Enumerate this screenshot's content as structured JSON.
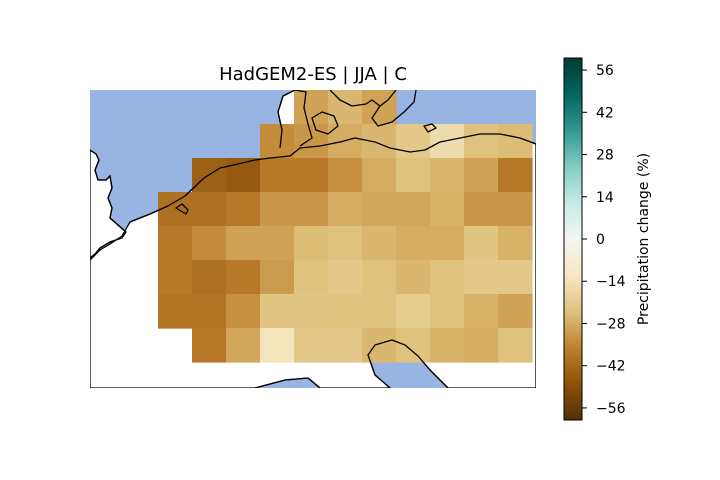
{
  "title": "HadGEM2-ES | JJA | C",
  "colorbar": {
    "label": "Precipitation change (%)",
    "ticks": [
      56,
      42,
      28,
      14,
      0,
      -14,
      -28,
      -42,
      -56
    ],
    "tick_labels": [
      "56",
      "42",
      "28",
      "14",
      "0",
      "−14",
      "−28",
      "−42",
      "−56"
    ],
    "vmin": -60,
    "vmax": 60,
    "colormap": "BrBG",
    "stops": [
      "#543005",
      "#8c510a",
      "#bf812d",
      "#dfc27d",
      "#f6e8c3",
      "#f5f5f5",
      "#c7eae5",
      "#80cdc1",
      "#35978f",
      "#01665e",
      "#003c30"
    ]
  },
  "colors": {
    "sea": "#98b4e2",
    "coast": "#000000"
  },
  "chart_data": {
    "type": "heatmap",
    "title": "HadGEM2-ES | JJA | C",
    "value_label": "Precipitation change (%)",
    "vmin": -60,
    "vmax": 60,
    "columns": 13,
    "rows": 9,
    "grid_values": [
      [
        null,
        null,
        null,
        null,
        null,
        null,
        -30,
        -26,
        -30,
        null,
        null,
        null,
        null
      ],
      [
        null,
        null,
        null,
        null,
        null,
        -34,
        -32,
        -28,
        -26,
        -22,
        -16,
        -24,
        -25
      ],
      [
        null,
        null,
        null,
        -44,
        -46,
        -38,
        -38,
        -33,
        -28,
        -24,
        -26,
        -30,
        -38
      ],
      [
        null,
        null,
        -40,
        -40,
        -38,
        -32,
        -32,
        -28,
        -29,
        -29,
        -27,
        -32,
        -32
      ],
      [
        null,
        null,
        -38,
        -34,
        -30,
        -30,
        -25,
        -24,
        -26,
        -28,
        -28,
        -23,
        -27
      ],
      [
        null,
        null,
        -38,
        -40,
        -38,
        -31,
        -24,
        -22,
        -24,
        -26,
        -24,
        -22,
        -22
      ],
      [
        null,
        null,
        -39,
        -39,
        -33,
        -23,
        -23,
        -24,
        -24,
        -21,
        -24,
        -27,
        -30
      ],
      [
        null,
        null,
        null,
        -38,
        -29,
        -13,
        -22,
        -22,
        -26,
        -24,
        -27,
        -28,
        -24
      ],
      [
        null,
        null,
        null,
        null,
        null,
        null,
        null,
        null,
        null,
        null,
        null,
        null,
        null
      ]
    ]
  }
}
